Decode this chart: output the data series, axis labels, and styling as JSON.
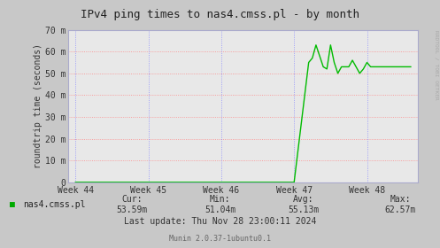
{
  "title": "IPv4 ping times to nas4.cmss.pl - by month",
  "ylabel": "roundtrip time (seconds)",
  "background_color": "#c8c8c8",
  "plot_bg_color": "#e8e8e8",
  "grid_color_h": "#ff8080",
  "grid_color_v": "#8080ff",
  "line_color": "#00bb00",
  "ylim": [
    0,
    70
  ],
  "yticks": [
    0,
    10,
    20,
    30,
    40,
    50,
    60,
    70
  ],
  "ytick_labels": [
    "0",
    "10 m",
    "20 m",
    "30 m",
    "40 m",
    "50 m",
    "60 m",
    "70 m"
  ],
  "week_labels": [
    "Week 44",
    "Week 45",
    "Week 46",
    "Week 47",
    "Week 48"
  ],
  "week_x": [
    0,
    100,
    200,
    300,
    400
  ],
  "xlim": [
    -10,
    470
  ],
  "legend_label": "nas4.cmss.pl",
  "legend_color": "#00aa00",
  "cur": "53.59m",
  "min_val": "51.04m",
  "avg": "55.13m",
  "max_val": "62.57m",
  "last_update": "Last update: Thu Nov 28 23:00:11 2024",
  "munin_version": "Munin 2.0.37-1ubuntu0.1",
  "rrdtool_label": "RRDTOOL / TOBI OETKER",
  "signal_x": [
    0,
    50,
    100,
    150,
    200,
    250,
    300,
    320,
    325,
    330,
    335,
    340,
    345,
    350,
    355,
    360,
    365,
    370,
    375,
    380,
    385,
    390,
    395,
    400,
    405,
    410,
    415,
    420,
    425,
    430,
    440,
    450,
    460
  ],
  "signal_y": [
    0,
    0,
    0,
    0,
    0,
    0,
    0,
    55,
    57,
    63,
    58,
    53,
    52,
    63,
    55,
    50,
    53,
    53,
    53,
    56,
    53,
    50,
    52,
    55,
    53,
    53,
    53,
    53,
    53,
    53,
    53,
    53,
    53
  ]
}
